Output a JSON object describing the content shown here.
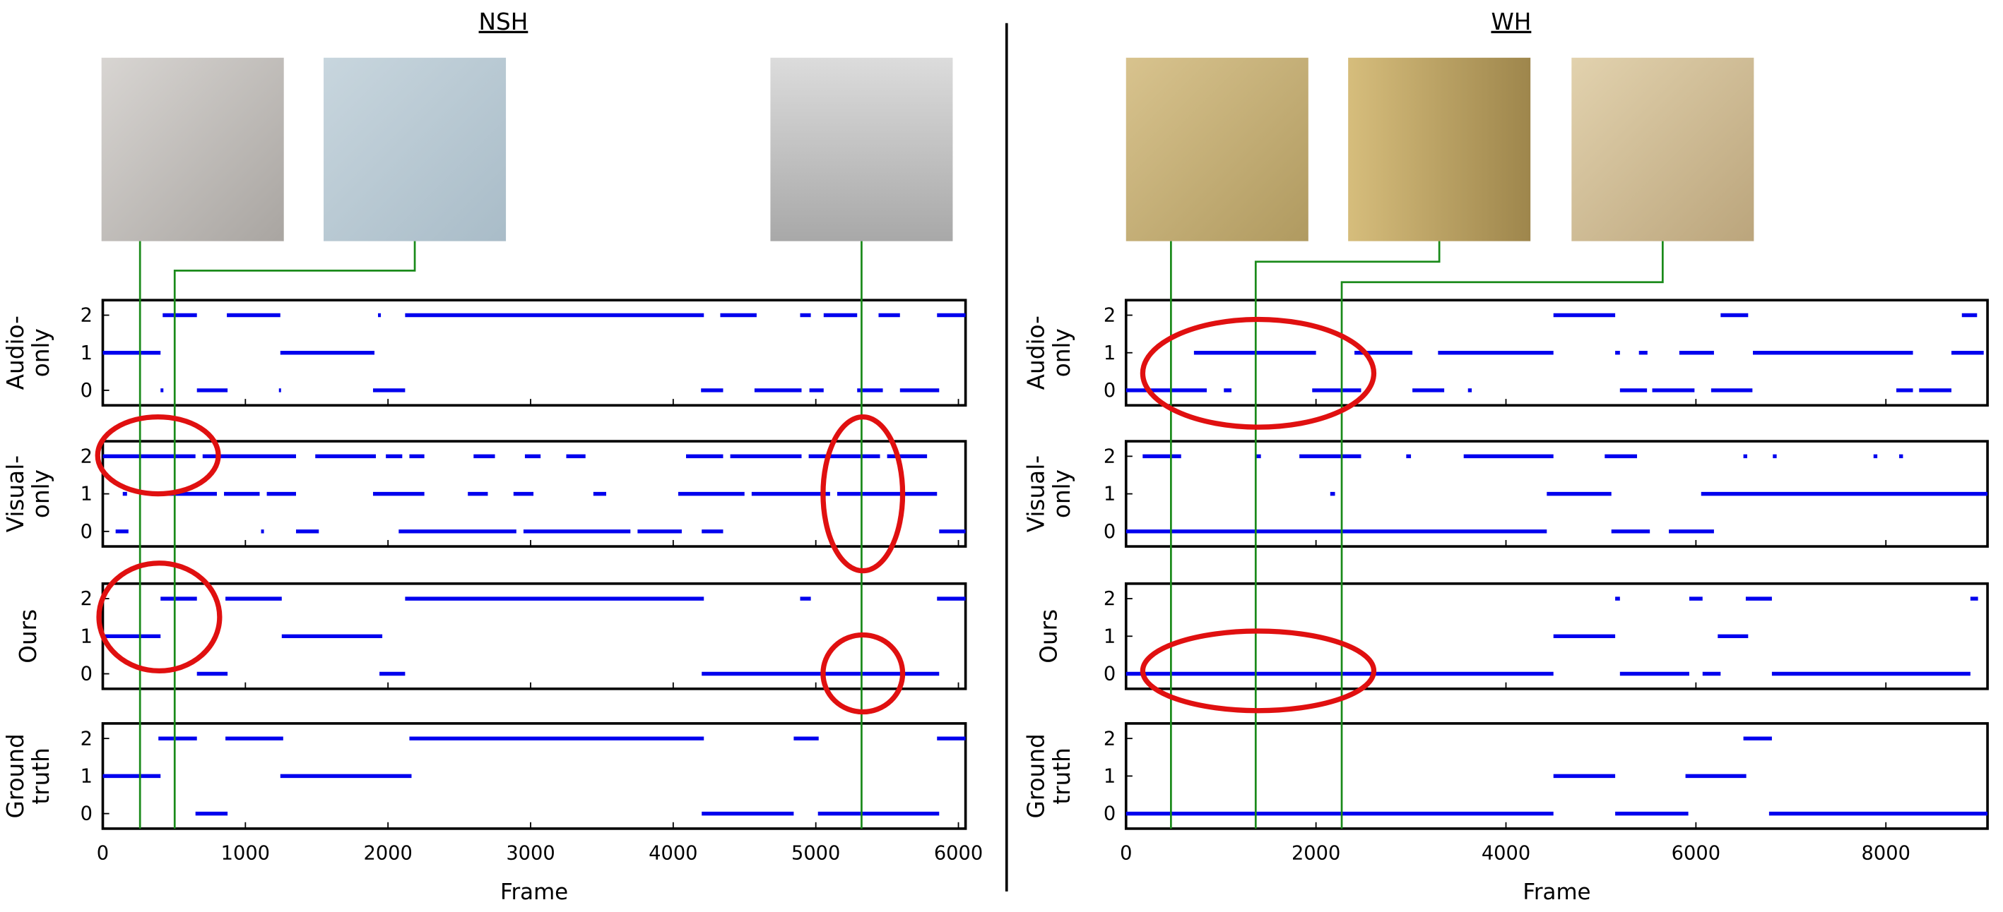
{
  "chart_data": [
    {
      "type": "segments",
      "title": "NSH",
      "xlabel": "Frame",
      "xlim": [
        0,
        6050
      ],
      "xticks": [
        0,
        1000,
        2000,
        3000,
        4000,
        5000,
        6000
      ],
      "ylim": [
        -0.4,
        2.4
      ],
      "yticks": [
        0,
        1,
        2
      ],
      "color": "#0000ee",
      "rows": [
        {
          "ylabel": [
            "Audio-",
            "only"
          ],
          "segments": [
            [
              420,
              660,
              2
            ],
            [
              870,
              1245,
              2
            ],
            [
              1930,
              1950,
              2
            ],
            [
              2120,
              4215,
              2
            ],
            [
              4330,
              4585,
              2
            ],
            [
              4890,
              4965,
              2
            ],
            [
              5055,
              5290,
              2
            ],
            [
              5440,
              5590,
              2
            ],
            [
              5850,
              6050,
              2
            ],
            [
              0,
              405,
              1
            ],
            [
              1245,
              1905,
              1
            ],
            [
              405,
              425,
              0
            ],
            [
              660,
              875,
              0
            ],
            [
              1235,
              1250,
              0
            ],
            [
              1895,
              2120,
              0
            ],
            [
              4195,
              4350,
              0
            ],
            [
              4570,
              4900,
              0
            ],
            [
              4955,
              5055,
              0
            ],
            [
              5290,
              5470,
              0
            ],
            [
              5590,
              5865,
              0
            ]
          ]
        },
        {
          "ylabel": [
            "Visual-",
            "only"
          ],
          "segments": [
            [
              0,
              650,
              2
            ],
            [
              700,
              1355,
              2
            ],
            [
              1490,
              1915,
              2
            ],
            [
              1985,
              2100,
              2
            ],
            [
              2150,
              2255,
              2
            ],
            [
              2600,
              2750,
              2
            ],
            [
              2960,
              3070,
              2
            ],
            [
              3250,
              3385,
              2
            ],
            [
              4090,
              4350,
              2
            ],
            [
              4400,
              4900,
              2
            ],
            [
              4950,
              5450,
              2
            ],
            [
              5500,
              5780,
              2
            ],
            [
              140,
              170,
              1
            ],
            [
              405,
              800,
              1
            ],
            [
              850,
              1100,
              1
            ],
            [
              1150,
              1355,
              1
            ],
            [
              1895,
              2255,
              1
            ],
            [
              2560,
              2700,
              1
            ],
            [
              2880,
              3020,
              1
            ],
            [
              3440,
              3530,
              1
            ],
            [
              4035,
              4500,
              1
            ],
            [
              4550,
              5100,
              1
            ],
            [
              5150,
              5850,
              1
            ],
            [
              90,
              180,
              0
            ],
            [
              1110,
              1130,
              0
            ],
            [
              1355,
              1515,
              0
            ],
            [
              2075,
              2900,
              0
            ],
            [
              2950,
              3700,
              0
            ],
            [
              3750,
              4060,
              0
            ],
            [
              4200,
              4350,
              0
            ],
            [
              5865,
              6050,
              0
            ]
          ]
        },
        {
          "ylabel": [
            "Ours"
          ],
          "segments": [
            [
              405,
              660,
              2
            ],
            [
              860,
              1255,
              2
            ],
            [
              2120,
              4215,
              2
            ],
            [
              4890,
              4965,
              2
            ],
            [
              5850,
              6050,
              2
            ],
            [
              0,
              405,
              1
            ],
            [
              1255,
              1960,
              1
            ],
            [
              660,
              875,
              0
            ],
            [
              1940,
              2120,
              0
            ],
            [
              4200,
              5865,
              0
            ]
          ]
        },
        {
          "ylabel": [
            "Ground",
            "truth"
          ],
          "segments": [
            [
              390,
              660,
              2
            ],
            [
              860,
              1265,
              2
            ],
            [
              2150,
              4215,
              2
            ],
            [
              4845,
              5020,
              2
            ],
            [
              5850,
              6050,
              2
            ],
            [
              0,
              405,
              1
            ],
            [
              1245,
              2165,
              1
            ],
            [
              650,
              875,
              0
            ],
            [
              4200,
              4845,
              0
            ],
            [
              5015,
              5865,
              0
            ]
          ]
        }
      ]
    },
    {
      "type": "segments",
      "title": "WH",
      "xlabel": "Frame",
      "xlim": [
        0,
        9070
      ],
      "xticks": [
        0,
        2000,
        4000,
        6000,
        8000
      ],
      "ylim": [
        -0.4,
        2.4
      ],
      "yticks": [
        0,
        1,
        2
      ],
      "color": "#0000ee",
      "rows": [
        {
          "ylabel": [
            "Audio-",
            "only"
          ],
          "segments": [
            [
              4500,
              5150,
              2
            ],
            [
              6260,
              6550,
              2
            ],
            [
              8800,
              8960,
              2
            ],
            [
              715,
              2000,
              1
            ],
            [
              2405,
              3015,
              1
            ],
            [
              3285,
              4500,
              1
            ],
            [
              5150,
              5200,
              1
            ],
            [
              5400,
              5490,
              1
            ],
            [
              5825,
              6190,
              1
            ],
            [
              6600,
              8285,
              1
            ],
            [
              8690,
              9030,
              1
            ],
            [
              0,
              850,
              0
            ],
            [
              1030,
              1110,
              0
            ],
            [
              1960,
              2475,
              0
            ],
            [
              3015,
              3350,
              0
            ],
            [
              3600,
              3640,
              0
            ],
            [
              5200,
              5485,
              0
            ],
            [
              5540,
              5985,
              0
            ],
            [
              6160,
              6595,
              0
            ],
            [
              8110,
              8285,
              0
            ],
            [
              8350,
              8690,
              0
            ]
          ]
        },
        {
          "ylabel": [
            "Visual-",
            "only"
          ],
          "segments": [
            [
              175,
              580,
              2
            ],
            [
              1370,
              1420,
              2
            ],
            [
              1825,
              2475,
              2
            ],
            [
              2950,
              3000,
              2
            ],
            [
              3555,
              4500,
              2
            ],
            [
              5040,
              5380,
              2
            ],
            [
              6500,
              6540,
              2
            ],
            [
              6810,
              6850,
              2
            ],
            [
              7870,
              7910,
              2
            ],
            [
              8140,
              8180,
              2
            ],
            [
              2150,
              2200,
              1
            ],
            [
              4430,
              5110,
              1
            ],
            [
              6055,
              9070,
              1
            ],
            [
              0,
              4430,
              0
            ],
            [
              5110,
              5515,
              0
            ],
            [
              5715,
              6190,
              0
            ]
          ]
        },
        {
          "ylabel": [
            "Ours"
          ],
          "segments": [
            [
              5150,
              5200,
              2
            ],
            [
              5930,
              6070,
              2
            ],
            [
              6525,
              6800,
              2
            ],
            [
              8890,
              8970,
              2
            ],
            [
              4500,
              5150,
              1
            ],
            [
              6230,
              6550,
              1
            ],
            [
              0,
              4500,
              0
            ],
            [
              5200,
              5930,
              0
            ],
            [
              6070,
              6260,
              0
            ],
            [
              6800,
              8890,
              0
            ]
          ]
        },
        {
          "ylabel": [
            "Ground",
            "truth"
          ],
          "segments": [
            [
              6500,
              6800,
              2
            ],
            [
              4500,
              5150,
              1
            ],
            [
              5890,
              6530,
              1
            ],
            [
              0,
              4500,
              0
            ],
            [
              5150,
              5920,
              0
            ],
            [
              6770,
              9070,
              0
            ]
          ]
        }
      ]
    }
  ]
}
